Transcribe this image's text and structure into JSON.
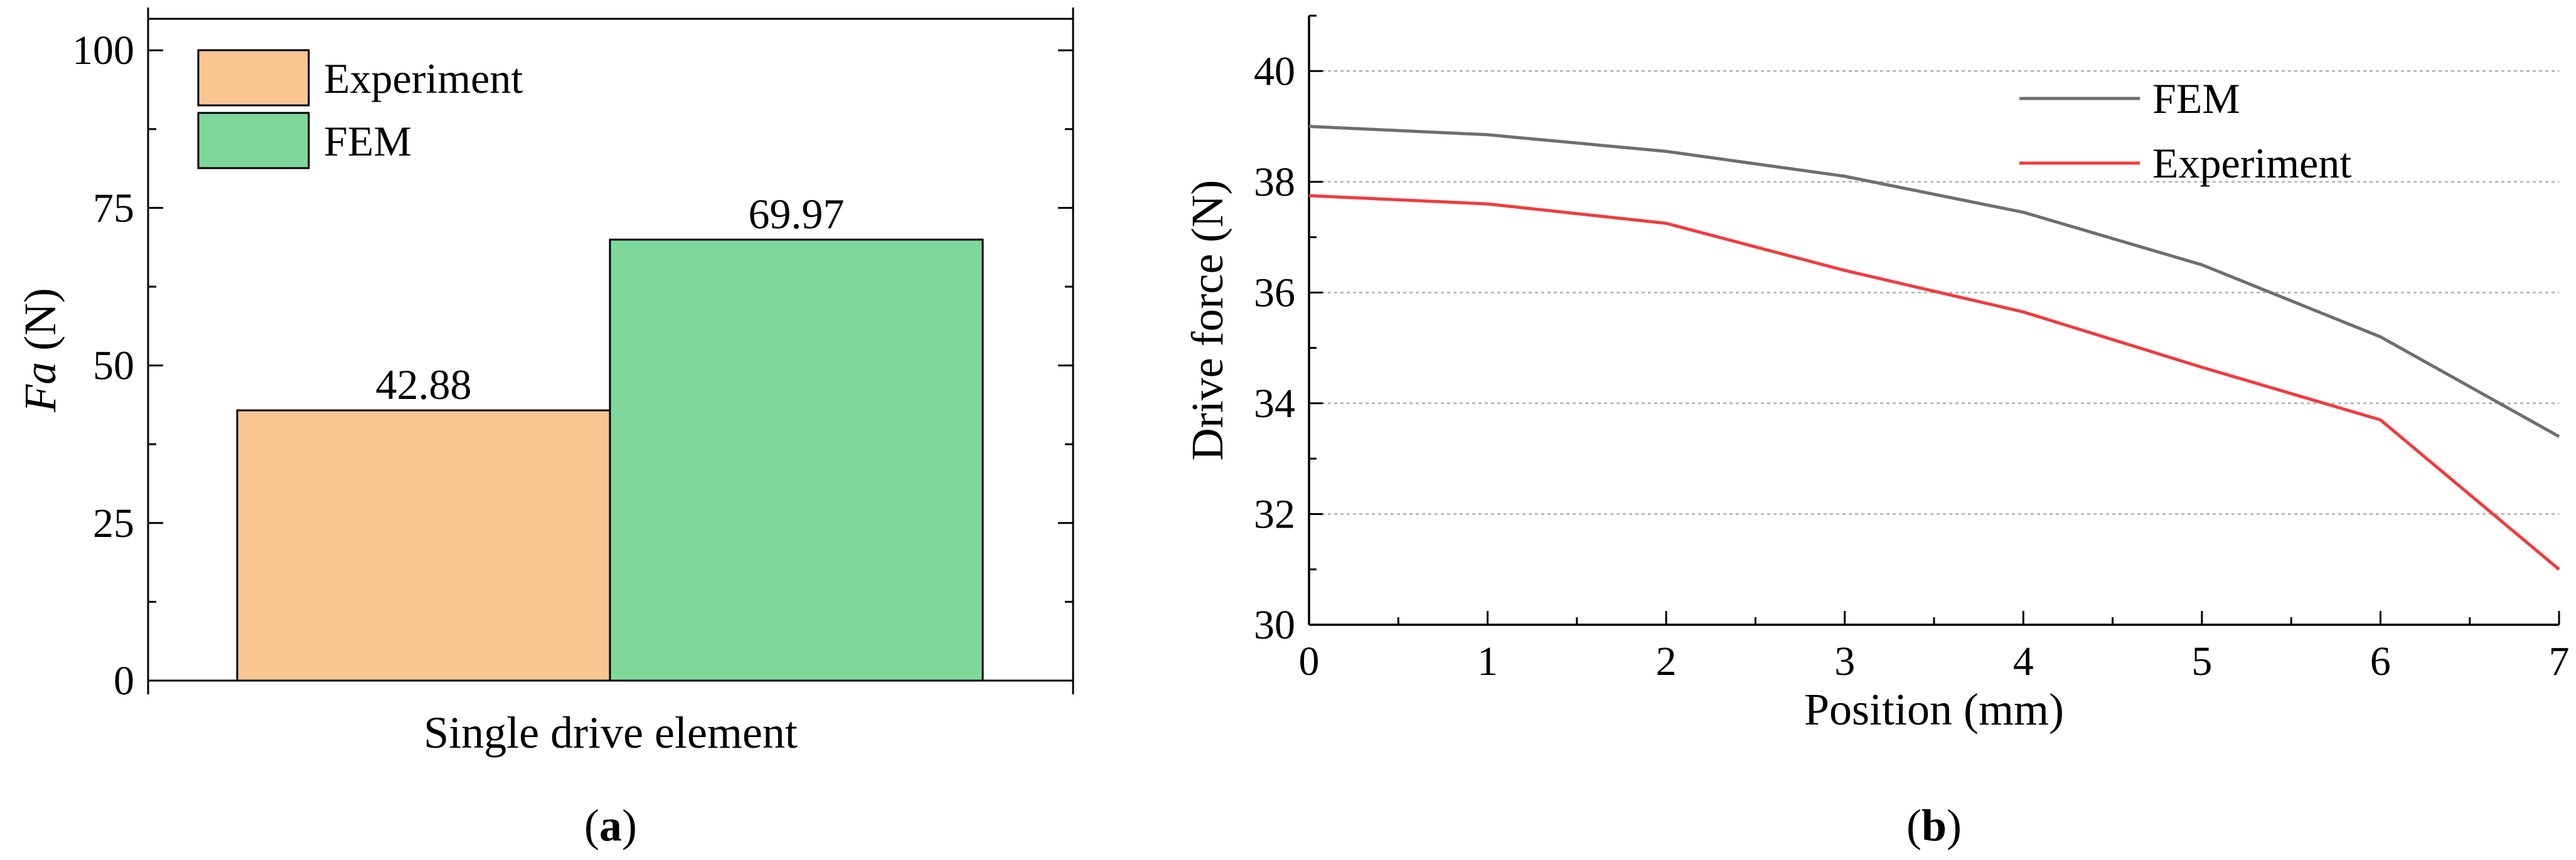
{
  "chart_data": [
    {
      "type": "bar",
      "panel_label": "(a)",
      "panel_letter": "a",
      "categories": [
        "Single drive element"
      ],
      "xlabel": "Single drive element",
      "ylabel_italic": "Fa",
      "ylabel_unit": " (N)",
      "ylim": [
        0,
        105
      ],
      "yticks": [
        0,
        25,
        50,
        75,
        100
      ],
      "grid": false,
      "legend_position": "top-left",
      "series": [
        {
          "name": "Experiment",
          "values": [
            42.88
          ],
          "color": "#F9C593",
          "label": "42.88"
        },
        {
          "name": "FEM",
          "values": [
            69.97
          ],
          "color": "#7FD89B",
          "label": "69.97"
        }
      ]
    },
    {
      "type": "line",
      "panel_label": "(b)",
      "panel_letter": "b",
      "xlabel": "Position (mm)",
      "ylabel": "Drive force (N)",
      "xlim": [
        0,
        7
      ],
      "ylim": [
        30,
        41
      ],
      "xticks": [
        0,
        1,
        2,
        3,
        4,
        5,
        6,
        7
      ],
      "yticks": [
        30,
        32,
        34,
        36,
        38,
        40
      ],
      "grid": true,
      "legend_position": "top-right",
      "x": [
        0,
        1,
        2,
        3,
        4,
        5,
        6,
        7
      ],
      "series": [
        {
          "name": "FEM",
          "color": "#6E6E6E",
          "values": [
            39.0,
            38.85,
            38.55,
            38.1,
            37.45,
            36.5,
            35.2,
            33.4
          ]
        },
        {
          "name": "Experiment",
          "color": "#F03C3C",
          "values": [
            37.75,
            37.6,
            37.25,
            36.4,
            35.65,
            34.65,
            33.7,
            31.0
          ]
        }
      ]
    }
  ]
}
